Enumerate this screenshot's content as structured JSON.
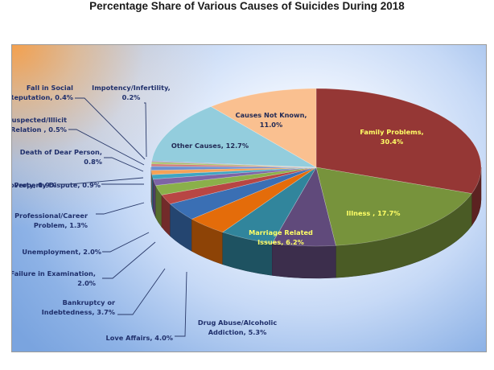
{
  "page": {
    "title": "Percentage Share of Various Causes of Suicides During 2018"
  },
  "chart_data": {
    "type": "pie",
    "title": "Percentage Share of Various Causes of Suicides During 2018",
    "unit": "%",
    "slices": [
      {
        "label": "Family Problems,",
        "value": 30.4,
        "value_text": "30.4%",
        "color": "#953735"
      },
      {
        "label": "Illness ,",
        "value": 17.7,
        "value_text": "17.7%",
        "color": "#77933c"
      },
      {
        "label": "Marriage Related Issues,",
        "value": 6.2,
        "value_text": "6.2%",
        "color": "#604a7b"
      },
      {
        "label": "Drug Abuse/Alcoholic Addiction,",
        "value": 5.3,
        "value_text": "5.3%",
        "color": "#31859c"
      },
      {
        "label": "Love Affairs,",
        "value": 4.0,
        "value_text": "4.0%",
        "color": "#e46c0a"
      },
      {
        "label": "Bankruptcy or Indebtedness,",
        "value": 3.7,
        "value_text": "3.7%",
        "color": "#3a6fb4"
      },
      {
        "label": "Failure in Examination,",
        "value": 2.0,
        "value_text": "2.0%",
        "color": "#b84644"
      },
      {
        "label": "Unemployment,",
        "value": 2.0,
        "value_text": "2.0%",
        "color": "#8ab04a"
      },
      {
        "label": "Professional/Career Problem,",
        "value": 1.3,
        "value_text": "1.3%",
        "color": "#7e64a6"
      },
      {
        "label": "Property Dispute,",
        "value": 0.9,
        "value_text": "0.9%",
        "color": "#3fa5c2"
      },
      {
        "label": "Poverty,",
        "value": 0.9,
        "value_text": "0.9%",
        "color": "#f5a257"
      },
      {
        "label": "Death of Dear Person,",
        "value": 0.8,
        "value_text": "0.8%",
        "color": "#6b8fd0"
      },
      {
        "label": "Suspected/Illicit Relation ,",
        "value": 0.5,
        "value_text": "0.5%",
        "color": "#d07a78"
      },
      {
        "label": "Fall in Social Reputation,",
        "value": 0.4,
        "value_text": "0.4%",
        "color": "#a7c46b"
      },
      {
        "label": "Impotency/Infertility,",
        "value": 0.2,
        "value_text": "0.2%",
        "color": "#9b86bd"
      },
      {
        "label": "Other Causes,",
        "value": 12.7,
        "value_text": "12.7%",
        "color": "#93cddd"
      },
      {
        "label": "Causes Not Known,",
        "value": 11.0,
        "value_text": "11.0%",
        "color": "#fac090"
      }
    ],
    "labels": [
      {
        "lines": [
          "Family Problems,",
          "30.4%"
        ]
      },
      {
        "lines": [
          "Illness , 17.7%"
        ]
      },
      {
        "lines": [
          "Marriage Related",
          "Issues, 6.2%"
        ]
      },
      {
        "lines": [
          "Drug Abuse/Alcoholic",
          "Addiction, 5.3%"
        ]
      },
      {
        "lines": [
          "Love Affairs, 4.0%"
        ]
      },
      {
        "lines": [
          "Bankruptcy or",
          "Indebtedness, 3.7%"
        ]
      },
      {
        "lines": [
          "Failure in Examination,",
          "2.0%"
        ]
      },
      {
        "lines": [
          "Unemployment, 2.0%"
        ]
      },
      {
        "lines": [
          "Professional/Career",
          "Problem, 1.3%"
        ]
      },
      {
        "lines": [
          "Property Dispute, 0.9%"
        ]
      },
      {
        "lines": [
          "Poverty, 0.9%"
        ]
      },
      {
        "lines": [
          "Death of Dear Person,",
          "0.8%"
        ]
      },
      {
        "lines": [
          "Suspected/Illicit",
          "Relation , 0.5%"
        ]
      },
      {
        "lines": [
          "Fall in Social",
          "Reputation, 0.4%"
        ]
      },
      {
        "lines": [
          "Impotency/Infertility,",
          "0.2%"
        ]
      },
      {
        "lines": [
          "Other Causes, 12.7%"
        ]
      },
      {
        "lines": [
          "Causes Not Known,",
          "11.0%"
        ]
      }
    ],
    "legend": "none",
    "grid": false
  }
}
